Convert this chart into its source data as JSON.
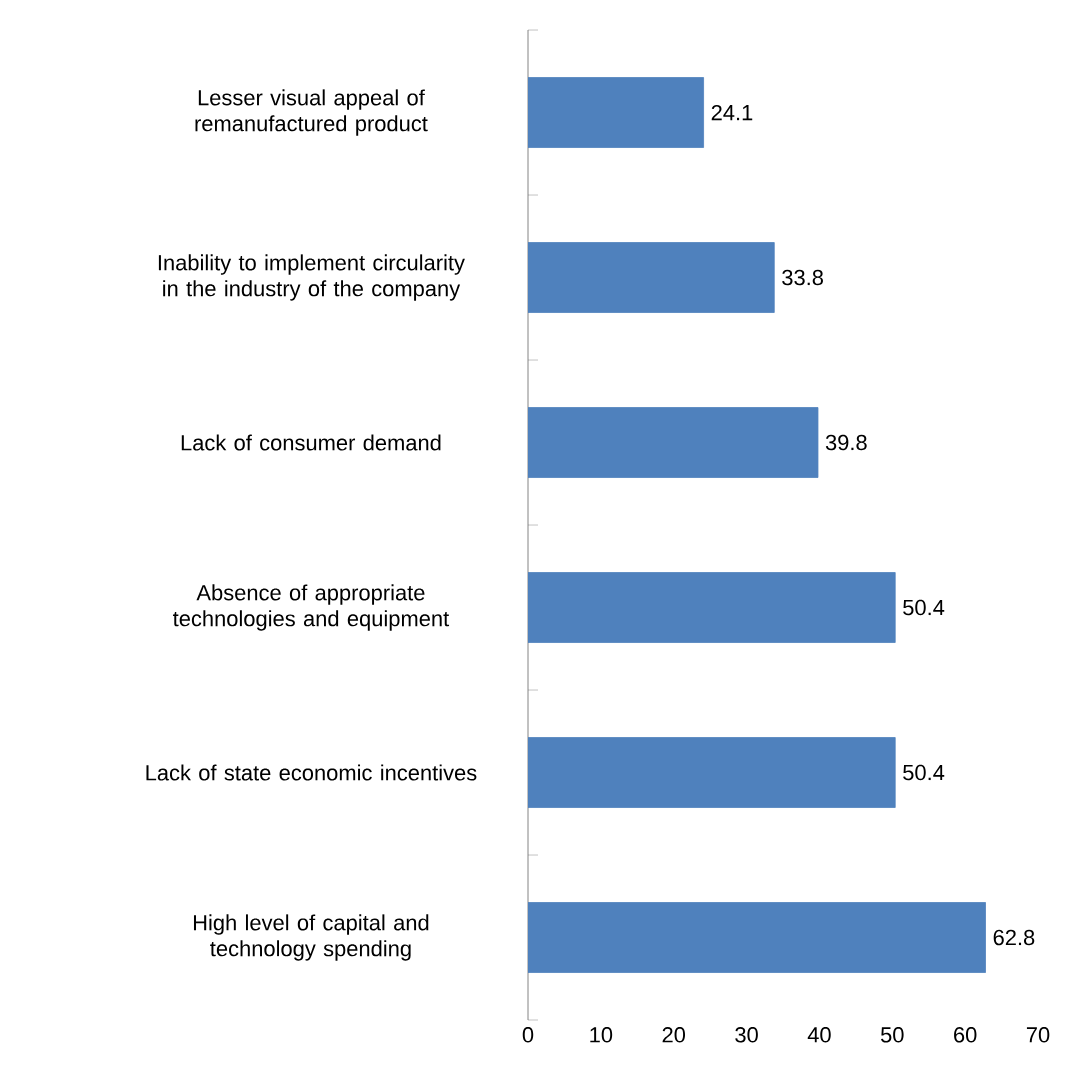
{
  "chart_data": {
    "type": "bar",
    "orientation": "horizontal",
    "categories": [
      "Lesser visual appeal of remanufactured product",
      "Inability to implement circularity in the industry of the company",
      "Lack of consumer demand",
      "Absence of appropriate technologies and equipment",
      "Lack of state economic incentives",
      "High level of capital and technology spending"
    ],
    "values": [
      24.1,
      33.8,
      39.8,
      50.4,
      50.4,
      62.8
    ],
    "color": "#4f81bd",
    "data_labels": true,
    "grid": false,
    "xlim": [
      0,
      70
    ],
    "xticks": [
      0,
      10,
      20,
      30,
      40,
      50,
      60,
      70
    ]
  }
}
